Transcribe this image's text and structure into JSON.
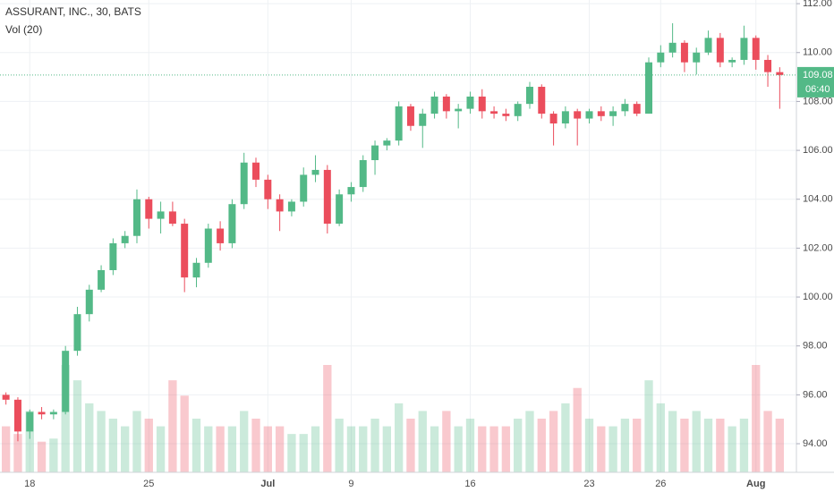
{
  "chart_data": {
    "type": "candlestick",
    "title": "ASSURANT, INC., 30, BATS",
    "volume_title": "Vol (20)",
    "categories": [
      null,
      null,
      "18",
      null,
      null,
      null,
      null,
      null,
      null,
      null,
      null,
      null,
      "25",
      null,
      null,
      null,
      null,
      null,
      null,
      null,
      null,
      null,
      "Jul",
      null,
      null,
      null,
      null,
      null,
      null,
      "9",
      null,
      null,
      null,
      null,
      null,
      null,
      null,
      null,
      null,
      "16",
      null,
      null,
      null,
      null,
      null,
      null,
      null,
      null,
      null,
      "23",
      null,
      null,
      null,
      null,
      null,
      "26",
      null,
      null,
      null,
      null,
      null,
      null,
      null,
      "Aug",
      null,
      null
    ],
    "open": [
      96.0,
      95.8,
      94.5,
      95.3,
      95.2,
      95.3,
      97.8,
      99.3,
      100.3,
      101.1,
      102.2,
      102.5,
      104.0,
      103.2,
      103.5,
      103.0,
      100.8,
      101.4,
      102.8,
      102.2,
      103.8,
      105.5,
      104.8,
      104.0,
      103.5,
      103.9,
      105.0,
      105.2,
      103.0,
      104.2,
      104.5,
      105.6,
      106.2,
      106.4,
      107.8,
      107.0,
      107.5,
      108.2,
      107.6,
      107.7,
      108.2,
      107.6,
      107.5,
      107.4,
      107.9,
      108.6,
      107.5,
      107.1,
      107.6,
      107.3,
      107.6,
      107.4,
      107.6,
      107.9,
      107.5,
      109.6,
      110.0,
      110.4,
      109.6,
      110.0,
      110.6,
      109.6,
      109.7,
      110.6,
      109.7,
      109.2
    ],
    "high": [
      96.1,
      95.9,
      95.4,
      95.5,
      95.4,
      98.0,
      99.6,
      100.5,
      101.3,
      102.4,
      102.7,
      104.4,
      104.1,
      103.9,
      103.9,
      103.2,
      101.6,
      103.0,
      103.1,
      104.0,
      105.9,
      105.7,
      105.0,
      104.2,
      104.0,
      105.3,
      105.8,
      105.4,
      104.4,
      104.7,
      105.8,
      106.4,
      106.5,
      108.0,
      107.9,
      107.7,
      108.4,
      108.3,
      107.9,
      108.4,
      108.5,
      107.8,
      107.7,
      108.0,
      108.8,
      108.7,
      107.6,
      107.8,
      107.7,
      107.7,
      107.8,
      107.8,
      108.1,
      108.0,
      109.8,
      110.3,
      111.2,
      110.5,
      110.2,
      110.9,
      110.8,
      109.8,
      111.1,
      110.7,
      109.9,
      109.4
    ],
    "low": [
      95.6,
      94.1,
      94.2,
      95.0,
      95.0,
      95.2,
      97.6,
      99.0,
      100.2,
      100.9,
      102.0,
      102.2,
      102.8,
      102.6,
      102.9,
      100.2,
      100.4,
      101.2,
      101.9,
      102.0,
      103.6,
      104.5,
      103.6,
      102.7,
      103.3,
      103.7,
      104.7,
      102.6,
      102.9,
      103.9,
      104.3,
      105.0,
      106.0,
      106.2,
      106.8,
      106.1,
      107.3,
      107.3,
      106.9,
      107.5,
      107.3,
      107.3,
      107.2,
      107.2,
      107.7,
      107.3,
      106.2,
      106.9,
      106.2,
      107.1,
      107.2,
      107.0,
      107.4,
      107.4,
      107.5,
      109.4,
      109.8,
      109.2,
      109.1,
      109.9,
      109.4,
      109.4,
      109.5,
      109.3,
      108.6,
      107.7
    ],
    "close": [
      95.8,
      94.5,
      95.3,
      95.2,
      95.3,
      97.8,
      99.3,
      100.3,
      101.1,
      102.2,
      102.5,
      104.0,
      103.2,
      103.5,
      103.0,
      100.8,
      101.4,
      102.8,
      102.2,
      103.8,
      105.5,
      104.8,
      104.0,
      103.5,
      103.9,
      105.0,
      105.2,
      103.0,
      104.2,
      104.5,
      105.6,
      106.2,
      106.4,
      107.8,
      107.0,
      107.5,
      108.2,
      107.6,
      107.7,
      108.2,
      107.6,
      107.5,
      107.4,
      107.9,
      108.6,
      107.5,
      107.1,
      107.6,
      107.3,
      107.6,
      107.4,
      107.6,
      107.9,
      107.5,
      109.6,
      110.0,
      110.4,
      109.6,
      110.0,
      110.6,
      109.6,
      109.7,
      110.6,
      109.7,
      109.2,
      109.08
    ],
    "volume": [
      30,
      25,
      40,
      20,
      22,
      70,
      60,
      45,
      40,
      35,
      30,
      40,
      35,
      30,
      60,
      50,
      35,
      30,
      30,
      30,
      40,
      35,
      30,
      30,
      25,
      25,
      30,
      70,
      35,
      30,
      30,
      35,
      30,
      45,
      35,
      40,
      30,
      40,
      30,
      35,
      30,
      30,
      30,
      35,
      40,
      35,
      40,
      45,
      55,
      35,
      30,
      30,
      35,
      35,
      60,
      45,
      40,
      35,
      40,
      35,
      35,
      30,
      35,
      70,
      40,
      35
    ],
    "up_color": "#53b987",
    "down_color": "#eb4d5c",
    "ylim": [
      92.83,
      112.15
    ],
    "yticks": [
      {
        "value": 94,
        "label": "94.00"
      },
      {
        "value": 96,
        "label": "96.00"
      },
      {
        "value": 98,
        "label": "98.00"
      },
      {
        "value": 100,
        "label": "100.00"
      },
      {
        "value": 102,
        "label": "102.00"
      },
      {
        "value": 104,
        "label": "104.00"
      },
      {
        "value": 106,
        "label": "106.00"
      },
      {
        "value": 108,
        "label": "108.00"
      },
      {
        "value": 110,
        "label": "110.00"
      },
      {
        "value": 112,
        "label": "112.00"
      }
    ],
    "grid": true,
    "last_price": 109.08,
    "countdown": "06:40"
  }
}
